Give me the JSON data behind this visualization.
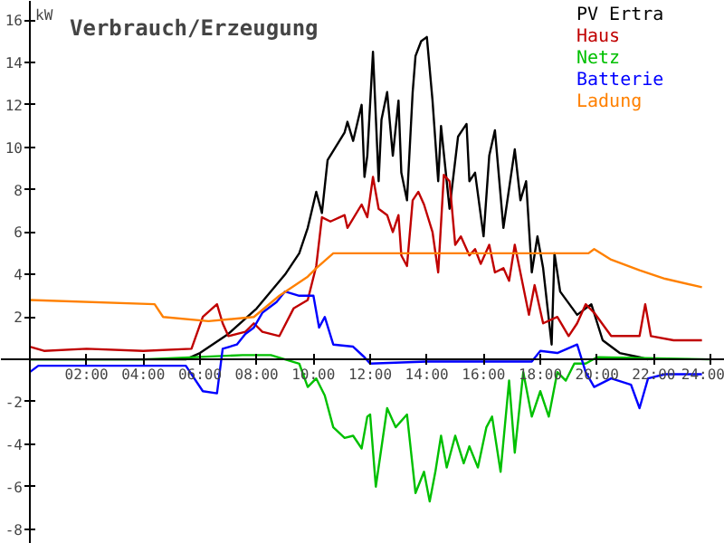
{
  "chart_data": {
    "type": "line",
    "title": "Verbrauch/Erzeugung",
    "ylabel": "kW",
    "xlim": [
      -1.02,
      24.51
    ],
    "ylim": [
      -8.7,
      16.9
    ],
    "xticks": [
      {
        "value": 2,
        "label": "02:00"
      },
      {
        "value": 4,
        "label": "04:00"
      },
      {
        "value": 6,
        "label": "06:00"
      },
      {
        "value": 8,
        "label": "08:00"
      },
      {
        "value": 10,
        "label": "10:00"
      },
      {
        "value": 12,
        "label": "12:00"
      },
      {
        "value": 14,
        "label": "14:00"
      },
      {
        "value": 16,
        "label": "16:00"
      },
      {
        "value": 18,
        "label": "18:00"
      },
      {
        "value": 20,
        "label": "20:00"
      },
      {
        "value": 22,
        "label": "22:00"
      },
      {
        "value": 24,
        "label": "24:00"
      }
    ],
    "yticks": [
      -8,
      -6,
      -4,
      -2,
      2,
      4,
      6,
      8,
      10,
      12,
      14,
      16
    ],
    "grid": false,
    "legend": "top right",
    "marker": "none",
    "line_style": "solid",
    "series": [
      {
        "name": "PV Ertra",
        "color": "#000000",
        "x": [
          0,
          5.5,
          6.0,
          7.0,
          8.0,
          9.0,
          9.5,
          9.8,
          10.1,
          10.3,
          10.5,
          11.1,
          11.2,
          11.4,
          11.7,
          11.8,
          11.9,
          12.1,
          12.3,
          12.4,
          12.6,
          12.8,
          13.0,
          13.1,
          13.3,
          13.5,
          13.6,
          13.8,
          14.0,
          14.2,
          14.4,
          14.5,
          14.8,
          15.1,
          15.4,
          15.5,
          15.7,
          16.0,
          16.2,
          16.4,
          16.7,
          17.1,
          17.3,
          17.5,
          17.7,
          17.9,
          18.1,
          18.4,
          18.5,
          18.7,
          19.3,
          19.8,
          20.2,
          20.8,
          21.5,
          21.8
        ],
        "values": [
          0,
          0,
          0.3,
          1.2,
          2.4,
          4.0,
          5.0,
          6.2,
          7.9,
          6.9,
          9.4,
          10.7,
          11.2,
          10.3,
          12.0,
          8.6,
          9.6,
          14.5,
          8.4,
          11.3,
          12.6,
          9.6,
          12.2,
          8.8,
          7.5,
          12.6,
          14.3,
          15.0,
          15.2,
          12.2,
          8.4,
          11.0,
          7.1,
          10.5,
          11.1,
          8.4,
          8.8,
          5.8,
          9.6,
          10.8,
          6.2,
          9.9,
          7.5,
          8.4,
          4.1,
          5.8,
          4.3,
          0.7,
          5.0,
          3.2,
          2.1,
          2.6,
          0.9,
          0.3,
          0.1,
          0
        ]
      },
      {
        "name": "Haus",
        "color": "#c00000",
        "x": [
          0,
          0.5,
          2,
          4,
          5.7,
          6.1,
          6.6,
          6.8,
          7.0,
          7.6,
          7.9,
          8.2,
          8.8,
          9.3,
          9.8,
          10.1,
          10.3,
          10.6,
          11.1,
          11.2,
          11.7,
          11.9,
          12.1,
          12.3,
          12.6,
          12.8,
          13.0,
          13.1,
          13.3,
          13.5,
          13.7,
          13.9,
          14.2,
          14.4,
          14.6,
          14.8,
          15.0,
          15.2,
          15.5,
          15.7,
          15.9,
          16.2,
          16.4,
          16.7,
          16.9,
          17.1,
          17.6,
          17.8,
          18.1,
          18.6,
          19.0,
          19.3,
          19.6,
          19.9,
          20.5,
          21.5,
          21.7,
          21.9,
          22.7,
          23.7
        ],
        "values": [
          0.6,
          0.4,
          0.5,
          0.4,
          0.5,
          2.0,
          2.6,
          1.7,
          1.1,
          1.3,
          1.7,
          1.3,
          1.1,
          2.4,
          2.8,
          4.4,
          6.7,
          6.5,
          6.8,
          6.2,
          7.3,
          6.7,
          8.6,
          7.1,
          6.8,
          6.0,
          6.8,
          4.9,
          4.4,
          7.5,
          7.9,
          7.3,
          6.0,
          4.1,
          8.7,
          8.4,
          5.4,
          5.8,
          4.9,
          5.2,
          4.5,
          5.4,
          4.1,
          4.3,
          3.7,
          5.4,
          2.1,
          3.5,
          1.7,
          2.0,
          1.1,
          1.7,
          2.6,
          2.2,
          1.1,
          1.1,
          2.6,
          1.1,
          0.9,
          0.9
        ]
      },
      {
        "name": "Netz",
        "color": "#00c000",
        "x": [
          0,
          4,
          7.5,
          8.5,
          9.0,
          9.5,
          9.8,
          10.1,
          10.4,
          10.7,
          11.1,
          11.4,
          11.7,
          11.9,
          12.0,
          12.2,
          12.6,
          12.9,
          13.3,
          13.6,
          13.9,
          14.1,
          14.3,
          14.5,
          14.7,
          15.0,
          15.3,
          15.5,
          15.8,
          16.1,
          16.3,
          16.6,
          16.9,
          17.1,
          17.4,
          17.7,
          18.0,
          18.3,
          18.6,
          18.9,
          19.2,
          19.6,
          20.0,
          24
        ],
        "values": [
          0,
          0,
          0.2,
          0.2,
          0,
          -0.2,
          -1.3,
          -0.9,
          -1.7,
          -3.2,
          -3.7,
          -3.6,
          -4.2,
          -2.7,
          -2.6,
          -6.0,
          -2.3,
          -3.2,
          -2.6,
          -6.3,
          -5.3,
          -6.7,
          -5.3,
          -3.6,
          -5.1,
          -3.6,
          -4.9,
          -4.1,
          -5.1,
          -3.2,
          -2.7,
          -5.3,
          -1.0,
          -4.4,
          -0.6,
          -2.7,
          -1.5,
          -2.7,
          -0.6,
          -1.0,
          -0.2,
          -0.2,
          0.1,
          0
        ]
      },
      {
        "name": "Batterie",
        "color": "#0000ff",
        "x": [
          0,
          0.3,
          2,
          5.5,
          6.1,
          6.6,
          6.8,
          7.3,
          7.6,
          7.9,
          8.2,
          8.7,
          9.0,
          9.5,
          10.0,
          10.2,
          10.4,
          10.7,
          11.4,
          11.8,
          12.0,
          14,
          17.7,
          18.0,
          18.6,
          19.3,
          19.6,
          19.9,
          20.5,
          21.2,
          21.5,
          21.8,
          22.4,
          23.7
        ],
        "values": [
          -0.6,
          -0.3,
          -0.3,
          -0.3,
          -1.5,
          -1.6,
          0.5,
          0.7,
          1.2,
          1.5,
          2.2,
          2.7,
          3.2,
          3.0,
          3.0,
          1.5,
          2.0,
          0.7,
          0.6,
          0.1,
          -0.2,
          -0.1,
          -0.1,
          0.4,
          0.3,
          0.7,
          -0.6,
          -1.3,
          -0.9,
          -1.2,
          -2.3,
          -0.9,
          -0.7,
          -0.7
        ]
      },
      {
        "name": "Ladung",
        "color": "#ff8000",
        "x": [
          0,
          4.4,
          4.7,
          6.3,
          7.9,
          8.8,
          9.8,
          10.1,
          10.7,
          18.3,
          19.7,
          19.9,
          20.5,
          21.5,
          22.4,
          23.7
        ],
        "values": [
          2.8,
          2.6,
          2.0,
          1.8,
          2.0,
          3.0,
          3.9,
          4.3,
          5.0,
          5.0,
          5.0,
          5.2,
          4.7,
          4.2,
          3.8,
          3.4
        ]
      }
    ]
  }
}
